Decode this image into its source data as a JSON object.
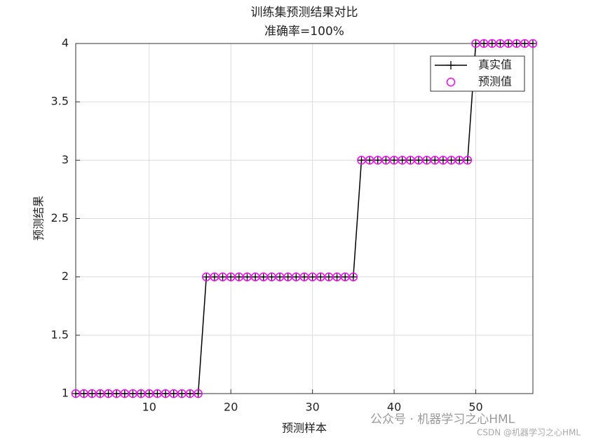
{
  "chart_data": {
    "type": "line",
    "title": "训练集预测结果对比",
    "subtitle": "准确率=100%",
    "x_label": "预测样本",
    "y_label": "预测结果",
    "x": [
      1,
      2,
      3,
      4,
      5,
      6,
      7,
      8,
      9,
      10,
      11,
      12,
      13,
      14,
      15,
      16,
      17,
      18,
      19,
      20,
      21,
      22,
      23,
      24,
      25,
      26,
      27,
      28,
      29,
      30,
      31,
      32,
      33,
      34,
      35,
      36,
      37,
      38,
      39,
      40,
      41,
      42,
      43,
      44,
      45,
      46,
      47,
      48,
      49,
      50,
      51,
      52,
      53,
      54,
      55,
      56,
      57
    ],
    "series": [
      {
        "name": "真实值",
        "color": "#000000",
        "values": [
          1,
          1,
          1,
          1,
          1,
          1,
          1,
          1,
          1,
          1,
          1,
          1,
          1,
          1,
          1,
          1,
          2,
          2,
          2,
          2,
          2,
          2,
          2,
          2,
          2,
          2,
          2,
          2,
          2,
          2,
          2,
          2,
          2,
          2,
          2,
          3,
          3,
          3,
          3,
          3,
          3,
          3,
          3,
          3,
          3,
          3,
          3,
          3,
          3,
          4,
          4,
          4,
          4,
          4,
          4,
          4,
          4
        ]
      },
      {
        "name": "预测值",
        "color": "#ff00ff",
        "values": [
          1,
          1,
          1,
          1,
          1,
          1,
          1,
          1,
          1,
          1,
          1,
          1,
          1,
          1,
          1,
          1,
          2,
          2,
          2,
          2,
          2,
          2,
          2,
          2,
          2,
          2,
          2,
          2,
          2,
          2,
          2,
          2,
          2,
          2,
          2,
          3,
          3,
          3,
          3,
          3,
          3,
          3,
          3,
          3,
          3,
          3,
          3,
          3,
          3,
          4,
          4,
          4,
          4,
          4,
          4,
          4,
          4
        ]
      }
    ],
    "xlim": [
      1,
      57
    ],
    "xticks": [
      10,
      20,
      30,
      40,
      50
    ],
    "ylim": [
      1,
      4
    ],
    "yticks": [
      1,
      1.5,
      2,
      2.5,
      3,
      3.5,
      4
    ],
    "grid": true,
    "legend": "northeast"
  },
  "watermark": [
    "公众号 · 机器学习之心HML",
    "CSDN @机器学习之心HML"
  ]
}
